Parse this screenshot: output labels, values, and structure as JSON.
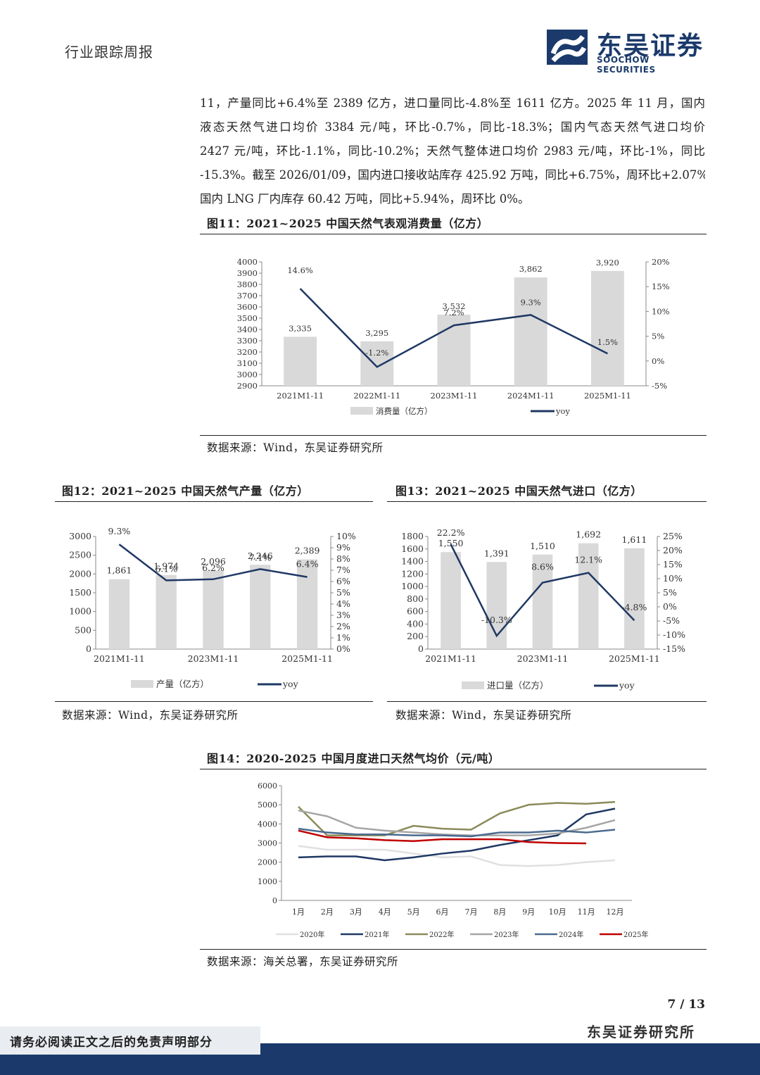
{
  "header": {
    "title": "行业跟踪周报"
  },
  "logo": {
    "name_cn": "东吴证券",
    "name_en": "SOOCHOW SECURITIES"
  },
  "body_lines": [
    "11，产量同比+6.4%至 2389 亿方，进口量同比-4.8%至 1611 亿方。2025 年 11 月，国内",
    "液态天然气进口均价 3384 元/吨，环比-0.7%，同比-18.3%；国内气态天然气进口均价",
    "2427 元/吨，环比-1.1%，同比-10.2%；天然气整体进口均价 2983 元/吨，环比-1%，同比",
    "-15.3%。截至 2026/01/09，国内进口接收站库存 425.92 万吨，同比+6.75%，周环比+2.07%；",
    "国内 LNG 厂内库存 60.42 万吨，同比+5.94%，周环比 0%。"
  ],
  "fig11": {
    "title": "图11：2021~2025 中国天然气表观消费量（亿方）",
    "source": "数据来源：Wind，东吴证券研究所"
  },
  "fig12": {
    "title": "图12：2021~2025 中国天然气产量（亿方）",
    "source": "数据来源：Wind，东吴证券研究所"
  },
  "fig13": {
    "title": "图13：2021~2025 中国天然气进口（亿方）",
    "source": "数据来源：Wind，东吴证券研究所"
  },
  "fig14": {
    "title": "图14：2020-2025 中国月度进口天然气均价（元/吨）",
    "source": "数据来源：海关总署，东吴证券研究所"
  },
  "chart_data": [
    {
      "id": "fig11",
      "type": "bar",
      "categories": [
        "2021M1-11",
        "2022M1-11",
        "2023M1-11",
        "2024M1-11",
        "2025M1-11"
      ],
      "series": [
        {
          "name": "消费量（亿方）",
          "type": "bar",
          "axis": "left",
          "values": [
            3335,
            3295,
            3532,
            3862,
            3920
          ],
          "labels": [
            "3,335",
            "3,295",
            "3,532",
            "3,862",
            "3,920"
          ],
          "color": "#d9d9d9"
        },
        {
          "name": "yoy",
          "type": "line",
          "axis": "right",
          "values": [
            14.6,
            -1.2,
            7.2,
            9.3,
            1.5
          ],
          "labels": [
            "14.6%",
            "-1.2%",
            "7.2%",
            "9.3%",
            "1.5%"
          ],
          "color": "#1f3864"
        }
      ],
      "y_ticks": [
        "2900",
        "3000",
        "3100",
        "3200",
        "3300",
        "3400",
        "3500",
        "3600",
        "3700",
        "3800",
        "3900",
        "4000"
      ],
      "y2_ticks": [
        "-5%",
        "0%",
        "5%",
        "10%",
        "15%",
        "20%"
      ],
      "ylim": [
        2900,
        4000
      ],
      "y2lim": [
        -5,
        20
      ],
      "legend": "bottom"
    },
    {
      "id": "fig12",
      "type": "bar",
      "categories": [
        "2021M1-11",
        "2022M1-11",
        "2023M1-11",
        "2024M1-11",
        "2025M1-11"
      ],
      "x_tick_labels": [
        "2021M1-11",
        "",
        "2023M1-11",
        "",
        "2025M1-11"
      ],
      "series": [
        {
          "name": "产量（亿方）",
          "type": "bar",
          "axis": "left",
          "values": [
            1861,
            1974,
            2096,
            2246,
            2389
          ],
          "labels": [
            "1,861",
            "1,974",
            "2,096",
            "2,246",
            "2,389"
          ],
          "color": "#d9d9d9"
        },
        {
          "name": "yoy",
          "type": "line",
          "axis": "right",
          "values": [
            9.3,
            6.1,
            6.2,
            7.1,
            6.4
          ],
          "labels": [
            "9.3%",
            "6.1%",
            "6.2%",
            "7.1%",
            "6.4%"
          ],
          "color": "#1f3864"
        }
      ],
      "y_ticks": [
        "0",
        "500",
        "1000",
        "1500",
        "2000",
        "2500",
        "3000"
      ],
      "y2_ticks": [
        "0%",
        "1%",
        "2%",
        "3%",
        "4%",
        "5%",
        "6%",
        "7%",
        "8%",
        "9%",
        "10%"
      ],
      "ylim": [
        0,
        3000
      ],
      "y2lim": [
        0,
        10
      ],
      "legend": "bottom"
    },
    {
      "id": "fig13",
      "type": "bar",
      "categories": [
        "2021M1-11",
        "2022M1-11",
        "2023M1-11",
        "2024M1-11",
        "2025M1-11"
      ],
      "x_tick_labels": [
        "2021M1-11",
        "",
        "2023M1-11",
        "",
        "2025M1-11"
      ],
      "series": [
        {
          "name": "进口量（亿方）",
          "type": "bar",
          "axis": "left",
          "values": [
            1550,
            1391,
            1510,
            1692,
            1611
          ],
          "labels": [
            "1,550",
            "1,391",
            "1,510",
            "1,692",
            "1,611"
          ],
          "color": "#d9d9d9"
        },
        {
          "name": "yoy",
          "type": "line",
          "axis": "right",
          "values": [
            22.2,
            -10.3,
            8.6,
            12.1,
            -4.8
          ],
          "labels": [
            "22.2%",
            "-10.3%",
            "8.6%",
            "12.1%",
            "-4.8%"
          ],
          "color": "#1f3864"
        }
      ],
      "y_ticks": [
        "0",
        "200",
        "400",
        "600",
        "800",
        "1000",
        "1200",
        "1400",
        "1600",
        "1800"
      ],
      "y2_ticks": [
        "-15%",
        "-10%",
        "-5%",
        "0%",
        "5%",
        "10%",
        "15%",
        "20%",
        "25%"
      ],
      "ylim": [
        0,
        1800
      ],
      "y2lim": [
        -15,
        25
      ],
      "legend": "bottom"
    },
    {
      "id": "fig14",
      "type": "line",
      "categories": [
        "1月",
        "2月",
        "3月",
        "4月",
        "5月",
        "6月",
        "7月",
        "8月",
        "9月",
        "10月",
        "11月",
        "12月"
      ],
      "series": [
        {
          "name": "2020年",
          "color": "#e0e0e0",
          "values": [
            2850,
            2650,
            2650,
            2650,
            2450,
            2250,
            2300,
            1850,
            1800,
            1850,
            2000,
            2100
          ]
        },
        {
          "name": "2021年",
          "color": "#1f3864",
          "values": [
            2250,
            2300,
            2300,
            2100,
            2250,
            2450,
            2600,
            2900,
            3150,
            3400,
            4500,
            4800
          ]
        },
        {
          "name": "2022年",
          "color": "#8b8b5a",
          "values": [
            4900,
            3400,
            3400,
            3400,
            3900,
            3750,
            3700,
            4550,
            5000,
            5100,
            5050,
            5150
          ]
        },
        {
          "name": "2023年",
          "color": "#a6a6a6",
          "values": [
            4700,
            4400,
            3800,
            3650,
            3550,
            3450,
            3400,
            3400,
            3400,
            3500,
            3800,
            4200
          ]
        },
        {
          "name": "2024年",
          "color": "#4a6a8f",
          "values": [
            3750,
            3550,
            3450,
            3450,
            3400,
            3400,
            3350,
            3550,
            3550,
            3650,
            3550,
            3700
          ]
        },
        {
          "name": "2025年",
          "color": "#c00000",
          "values": [
            3650,
            3300,
            3250,
            3150,
            3100,
            3200,
            3200,
            3200,
            3050,
            3000,
            2983,
            null
          ]
        }
      ],
      "y_ticks": [
        "0",
        "1000",
        "2000",
        "3000",
        "4000",
        "5000",
        "6000"
      ],
      "ylim": [
        0,
        6000
      ],
      "legend": "bottom"
    }
  ],
  "footer": {
    "page": "7  /  13",
    "org": "东吴证券研究所",
    "disclaimer": "请务必阅读正文之后的免责声明部分"
  }
}
